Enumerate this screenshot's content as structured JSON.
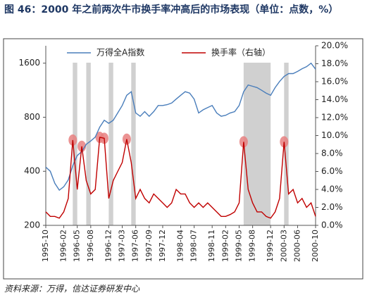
{
  "chart_data": {
    "type": "line",
    "title": "图 46：2000 年之前两次牛市换手率冲高后的市场表现（单位：点数，%）",
    "source": "资料来源：万得，信达证券研发中心",
    "x": [
      "1995-10",
      "1995-11",
      "1995-12",
      "1996-01",
      "1996-02",
      "1996-03",
      "1996-04",
      "1996-05",
      "1996-06",
      "1996-07",
      "1996-08",
      "1996-09",
      "1996-10",
      "1996-11",
      "1996-12",
      "1997-01",
      "1997-02",
      "1997-03",
      "1997-04",
      "1997-05",
      "1997-06",
      "1997-07",
      "1997-08",
      "1997-09",
      "1997-10",
      "1997-11",
      "1997-12",
      "1998-01",
      "1998-02",
      "1998-03",
      "1998-04",
      "1998-05",
      "1998-06",
      "1998-07",
      "1998-08",
      "1998-09",
      "1998-10",
      "1998-11",
      "1998-12",
      "1999-01",
      "1999-02",
      "1999-03",
      "1999-04",
      "1999-05",
      "1999-06",
      "1999-07",
      "1999-08",
      "1999-09",
      "1999-10",
      "1999-11",
      "1999-12",
      "2000-01",
      "2000-02",
      "2000-03",
      "2000-04",
      "2000-05",
      "2000-06",
      "2000-07",
      "2000-08",
      "2000-09",
      "2000-10"
    ],
    "xticks": [
      "1995-10",
      "1996-02",
      "1996-05",
      "1996-08",
      "1996-12",
      "1997-03",
      "1997-06",
      "1997-09",
      "1997-12",
      "1998-04",
      "1998-07",
      "1998-11",
      "1999-02",
      "1999-05",
      "1999-08",
      "1999-12",
      "2000-03",
      "2000-06",
      "2000-10"
    ],
    "series": [
      {
        "name": "万得全A指数",
        "color": "#4a7ebb",
        "axis": "y",
        "values": [
          422,
          400,
          343,
          314,
          328,
          358,
          430,
          490,
          515,
          565,
          590,
          620,
          705,
          770,
          740,
          770,
          845,
          930,
          1060,
          1110,
          845,
          810,
          860,
          810,
          860,
          930,
          930,
          940,
          960,
          1010,
          1060,
          1110,
          1090,
          1010,
          845,
          880,
          905,
          930,
          845,
          810,
          820,
          845,
          860,
          930,
          1110,
          1210,
          1190,
          1170,
          1130,
          1090,
          1060,
          1170,
          1265,
          1350,
          1400,
          1400,
          1440,
          1490,
          1530,
          1600,
          1480
        ]
      },
      {
        "name": "换手率（右轴）",
        "color": "#c00000",
        "axis": "y2",
        "values": [
          1.5,
          1.0,
          1.0,
          0.8,
          1.5,
          3.0,
          9.5,
          4.0,
          8.8,
          5.0,
          3.5,
          4.0,
          9.8,
          9.7,
          3.0,
          5.0,
          6.0,
          7.0,
          9.6,
          7.0,
          3.0,
          4.0,
          3.0,
          2.5,
          3.5,
          3.0,
          2.5,
          2.0,
          2.5,
          4.0,
          3.5,
          3.5,
          2.5,
          2.0,
          2.5,
          2.0,
          2.5,
          2.0,
          1.5,
          1.0,
          1.0,
          1.2,
          1.5,
          2.5,
          9.3,
          4.0,
          2.5,
          1.5,
          1.5,
          1.0,
          0.8,
          1.5,
          3.0,
          9.3,
          3.5,
          4.0,
          2.5,
          3.0,
          2.0,
          2.5,
          1.0
        ]
      }
    ],
    "ylog": true,
    "ylim": [
      200,
      2000
    ],
    "yticks": [
      200,
      400,
      800,
      1600
    ],
    "y2lim": [
      0,
      20
    ],
    "y2ticks": [
      {
        "value": 0,
        "label": "0.0%"
      },
      {
        "value": 2,
        "label": "2.0%"
      },
      {
        "value": 4,
        "label": "4.0%"
      },
      {
        "value": 6,
        "label": "6.0%"
      },
      {
        "value": 8,
        "label": "8.0%"
      },
      {
        "value": 10,
        "label": "10.0%"
      },
      {
        "value": 12,
        "label": "12.0%"
      },
      {
        "value": 14,
        "label": "14.0%"
      },
      {
        "value": 16,
        "label": "16.0%"
      },
      {
        "value": 18,
        "label": "18.0%"
      },
      {
        "value": 20,
        "label": "20.0%"
      }
    ],
    "shaded_periods": [
      [
        "1996-04",
        "1996-05"
      ],
      [
        "1996-07",
        "1996-08"
      ],
      [
        "1996-12",
        "1997-01"
      ],
      [
        "1997-05",
        "1997-06"
      ],
      [
        "1999-06",
        "1999-12"
      ],
      [
        "2000-03",
        "2000-04"
      ]
    ],
    "shade_color": "#d0d0d0",
    "highlights": [
      "1996-04",
      "1996-06",
      "1996-10",
      "1996-11",
      "1997-04",
      "1999-06",
      "2000-03"
    ],
    "highlight_color": "#e88080",
    "legend": "top"
  }
}
